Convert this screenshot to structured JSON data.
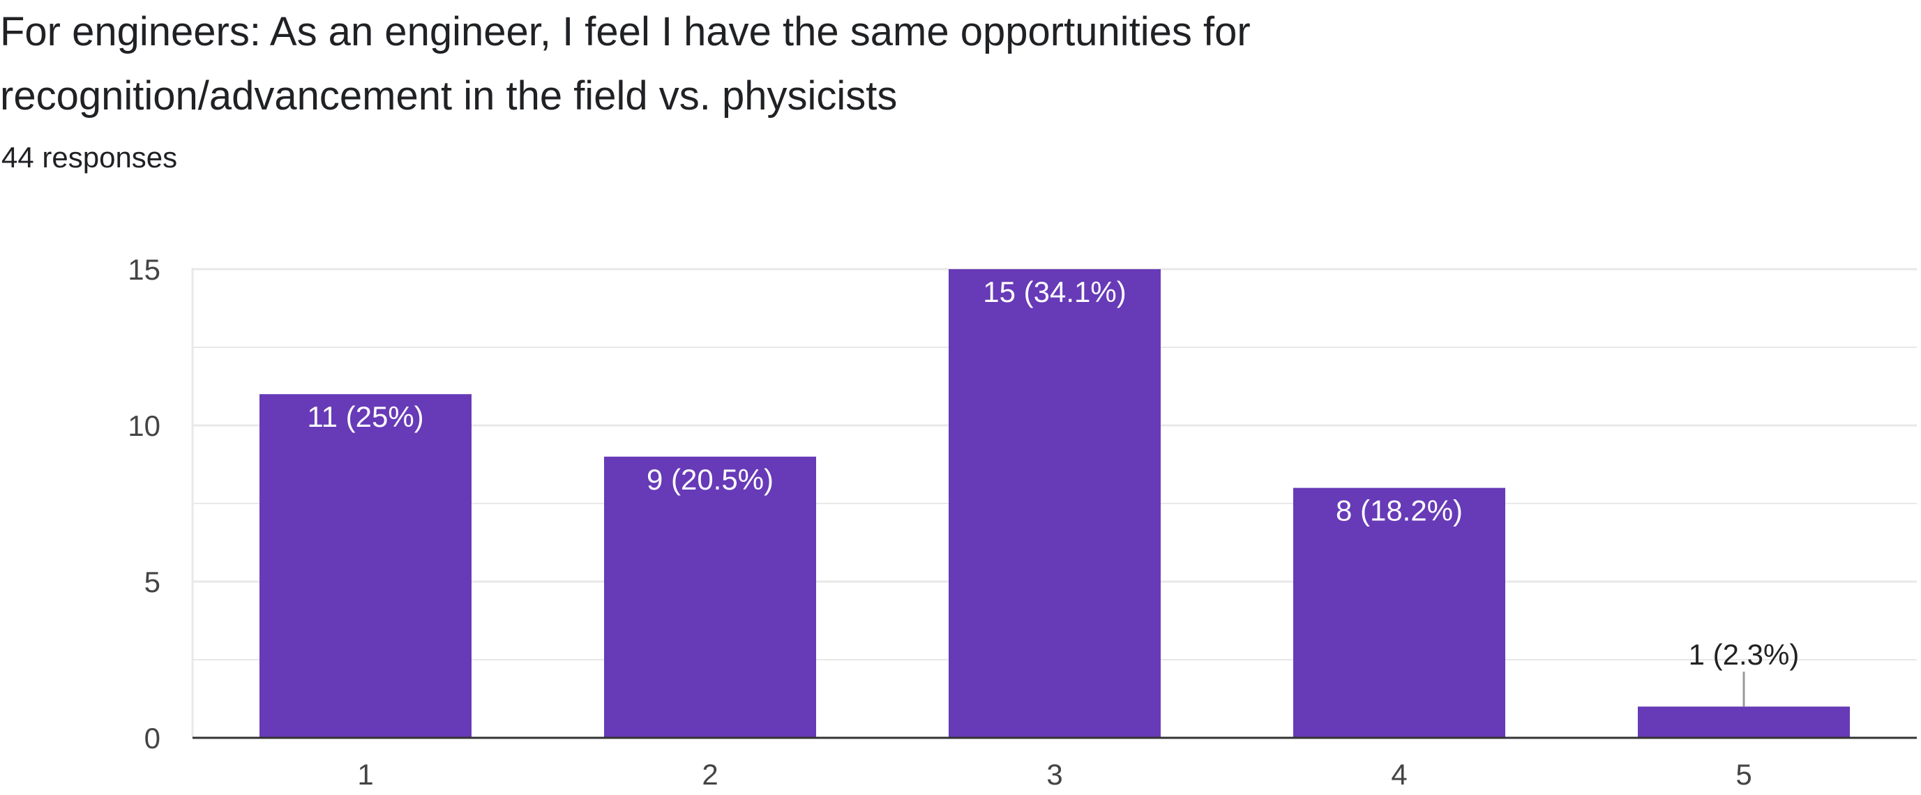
{
  "question": {
    "title": "For engineers: As an engineer, I feel I have the same opportunities for recognition/advancement in the field vs. physicists",
    "responses": "44 responses"
  },
  "colors": {
    "bar": "#673ab7",
    "grid": "#e8e8e8",
    "axis": "#333333",
    "tick_text": "#444444",
    "label_inside": "#ffffff",
    "label_outside": "#222222",
    "leader": "#999999"
  },
  "chart_data": {
    "type": "bar",
    "categories": [
      "1",
      "2",
      "3",
      "4",
      "5"
    ],
    "values": [
      11,
      9,
      15,
      8,
      1
    ],
    "data_labels": [
      "11 (25%)",
      "9 (20.5%)",
      "15 (34.1%)",
      "8 (18.2%)",
      "1 (2.3%)"
    ],
    "y_ticks": [
      "0",
      "5",
      "10",
      "15"
    ],
    "y_tick_values": [
      0,
      5,
      10,
      15
    ],
    "ylim": [
      0,
      15
    ],
    "minor_grid_values": [
      2.5,
      7.5,
      12.5
    ],
    "grid": true,
    "title": "",
    "xlabel": "",
    "ylabel": ""
  }
}
